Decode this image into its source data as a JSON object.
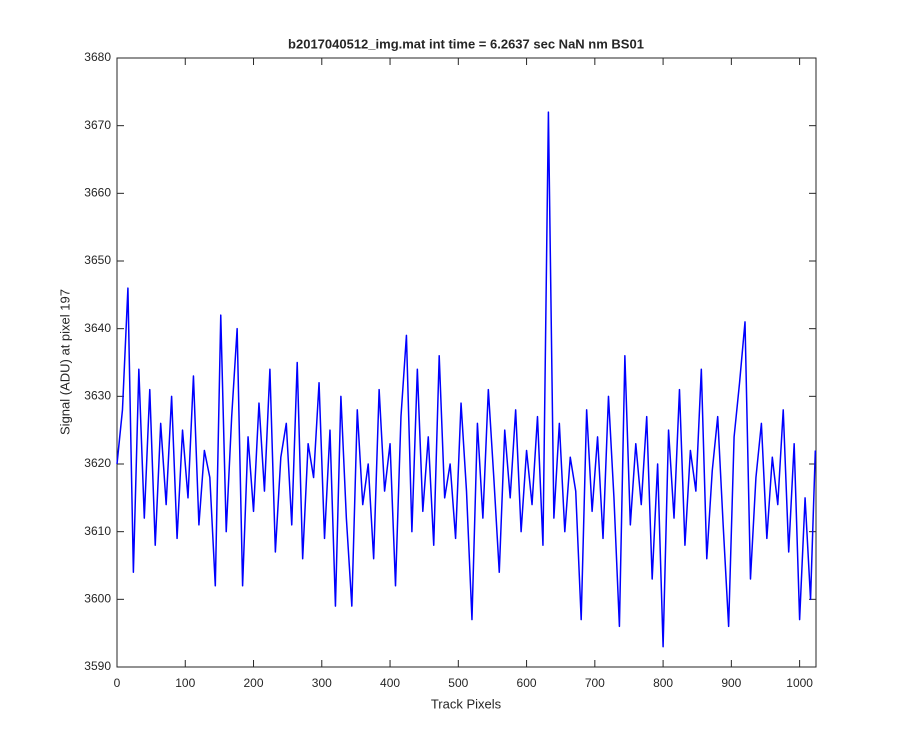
{
  "chart_data": {
    "type": "line",
    "title": "b2017040512_img.mat int time = 6.2637 sec  NaN nm BS01",
    "x_label": "Track Pixels",
    "y_label": "Signal (ADU) at pixel 197",
    "color": "#0000ff",
    "xlim": [
      0,
      1024
    ],
    "xticks": [
      0,
      100,
      200,
      300,
      400,
      500,
      600,
      700,
      800,
      900,
      1000
    ],
    "ylim": [
      3590,
      3680
    ],
    "yticks": [
      3590,
      3600,
      3610,
      3620,
      3630,
      3640,
      3650,
      3660,
      3670,
      3680
    ],
    "x": [
      0,
      8,
      16,
      24,
      32,
      40,
      48,
      56,
      64,
      72,
      80,
      88,
      96,
      104,
      112,
      120,
      128,
      136,
      144,
      152,
      160,
      168,
      176,
      184,
      192,
      200,
      208,
      216,
      224,
      232,
      240,
      248,
      256,
      264,
      272,
      280,
      288,
      296,
      304,
      312,
      320,
      328,
      336,
      344,
      352,
      360,
      368,
      376,
      384,
      392,
      400,
      408,
      416,
      424,
      432,
      440,
      448,
      456,
      464,
      472,
      480,
      488,
      496,
      504,
      512,
      520,
      528,
      536,
      544,
      552,
      560,
      568,
      576,
      584,
      592,
      600,
      608,
      616,
      624,
      632,
      640,
      648,
      656,
      664,
      672,
      680,
      688,
      696,
      704,
      712,
      720,
      728,
      736,
      744,
      752,
      760,
      768,
      776,
      784,
      792,
      800,
      808,
      816,
      824,
      832,
      840,
      848,
      856,
      864,
      872,
      880,
      888,
      896,
      904,
      912,
      920,
      928,
      936,
      944,
      952,
      960,
      968,
      976,
      984,
      992,
      1000,
      1008,
      1016,
      1023
    ],
    "values": [
      3620,
      3628,
      3646,
      3604,
      3634,
      3612,
      3631,
      3608,
      3626,
      3614,
      3630,
      3609,
      3625,
      3615,
      3633,
      3611,
      3622,
      3618,
      3602,
      3642,
      3610,
      3627,
      3640,
      3602,
      3624,
      3613,
      3629,
      3616,
      3634,
      3607,
      3621,
      3626,
      3611,
      3635,
      3606,
      3623,
      3618,
      3632,
      3609,
      3625,
      3599,
      3630,
      3612,
      3599,
      3628,
      3614,
      3620,
      3606,
      3631,
      3616,
      3623,
      3602,
      3627,
      3639,
      3610,
      3634,
      3613,
      3624,
      3608,
      3636,
      3615,
      3620,
      3609,
      3629,
      3616,
      3597,
      3626,
      3612,
      3631,
      3618,
      3604,
      3625,
      3615,
      3628,
      3610,
      3622,
      3614,
      3627,
      3608,
      3672,
      3612,
      3626,
      3610,
      3621,
      3616,
      3597,
      3628,
      3613,
      3624,
      3609,
      3630,
      3615,
      3596,
      3636,
      3611,
      3623,
      3614,
      3627,
      3603,
      3620,
      3593,
      3625,
      3612,
      3631,
      3608,
      3622,
      3616,
      3634,
      3606,
      3619,
      3627,
      3611,
      3596,
      3624,
      3632,
      3641,
      3603,
      3618,
      3626,
      3609,
      3621,
      3614,
      3628,
      3607,
      3623,
      3597,
      3615,
      3600,
      3622
    ]
  }
}
